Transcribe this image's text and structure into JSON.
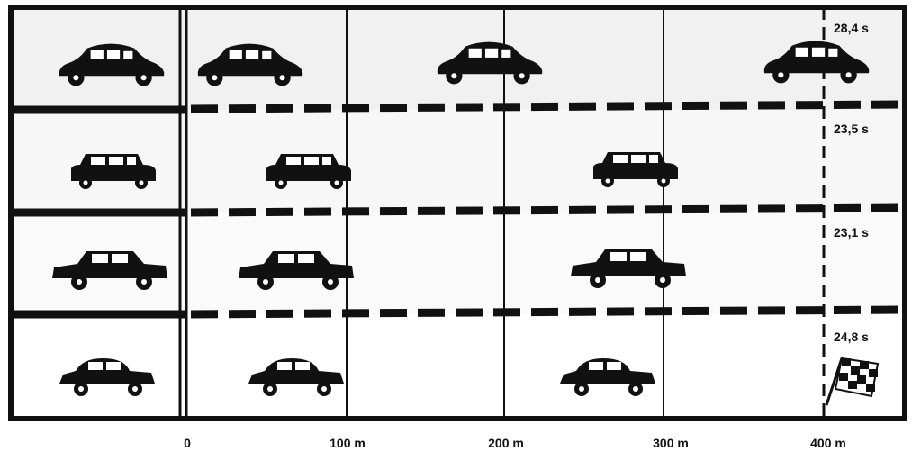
{
  "lanes": [
    {
      "time": "28,4 s"
    },
    {
      "time": "23,5 s"
    },
    {
      "time": "23,1 s"
    },
    {
      "time": "24,8 s"
    }
  ],
  "distance_labels": [
    "0",
    "100 m",
    "200 m",
    "300 m",
    "400 m"
  ]
}
